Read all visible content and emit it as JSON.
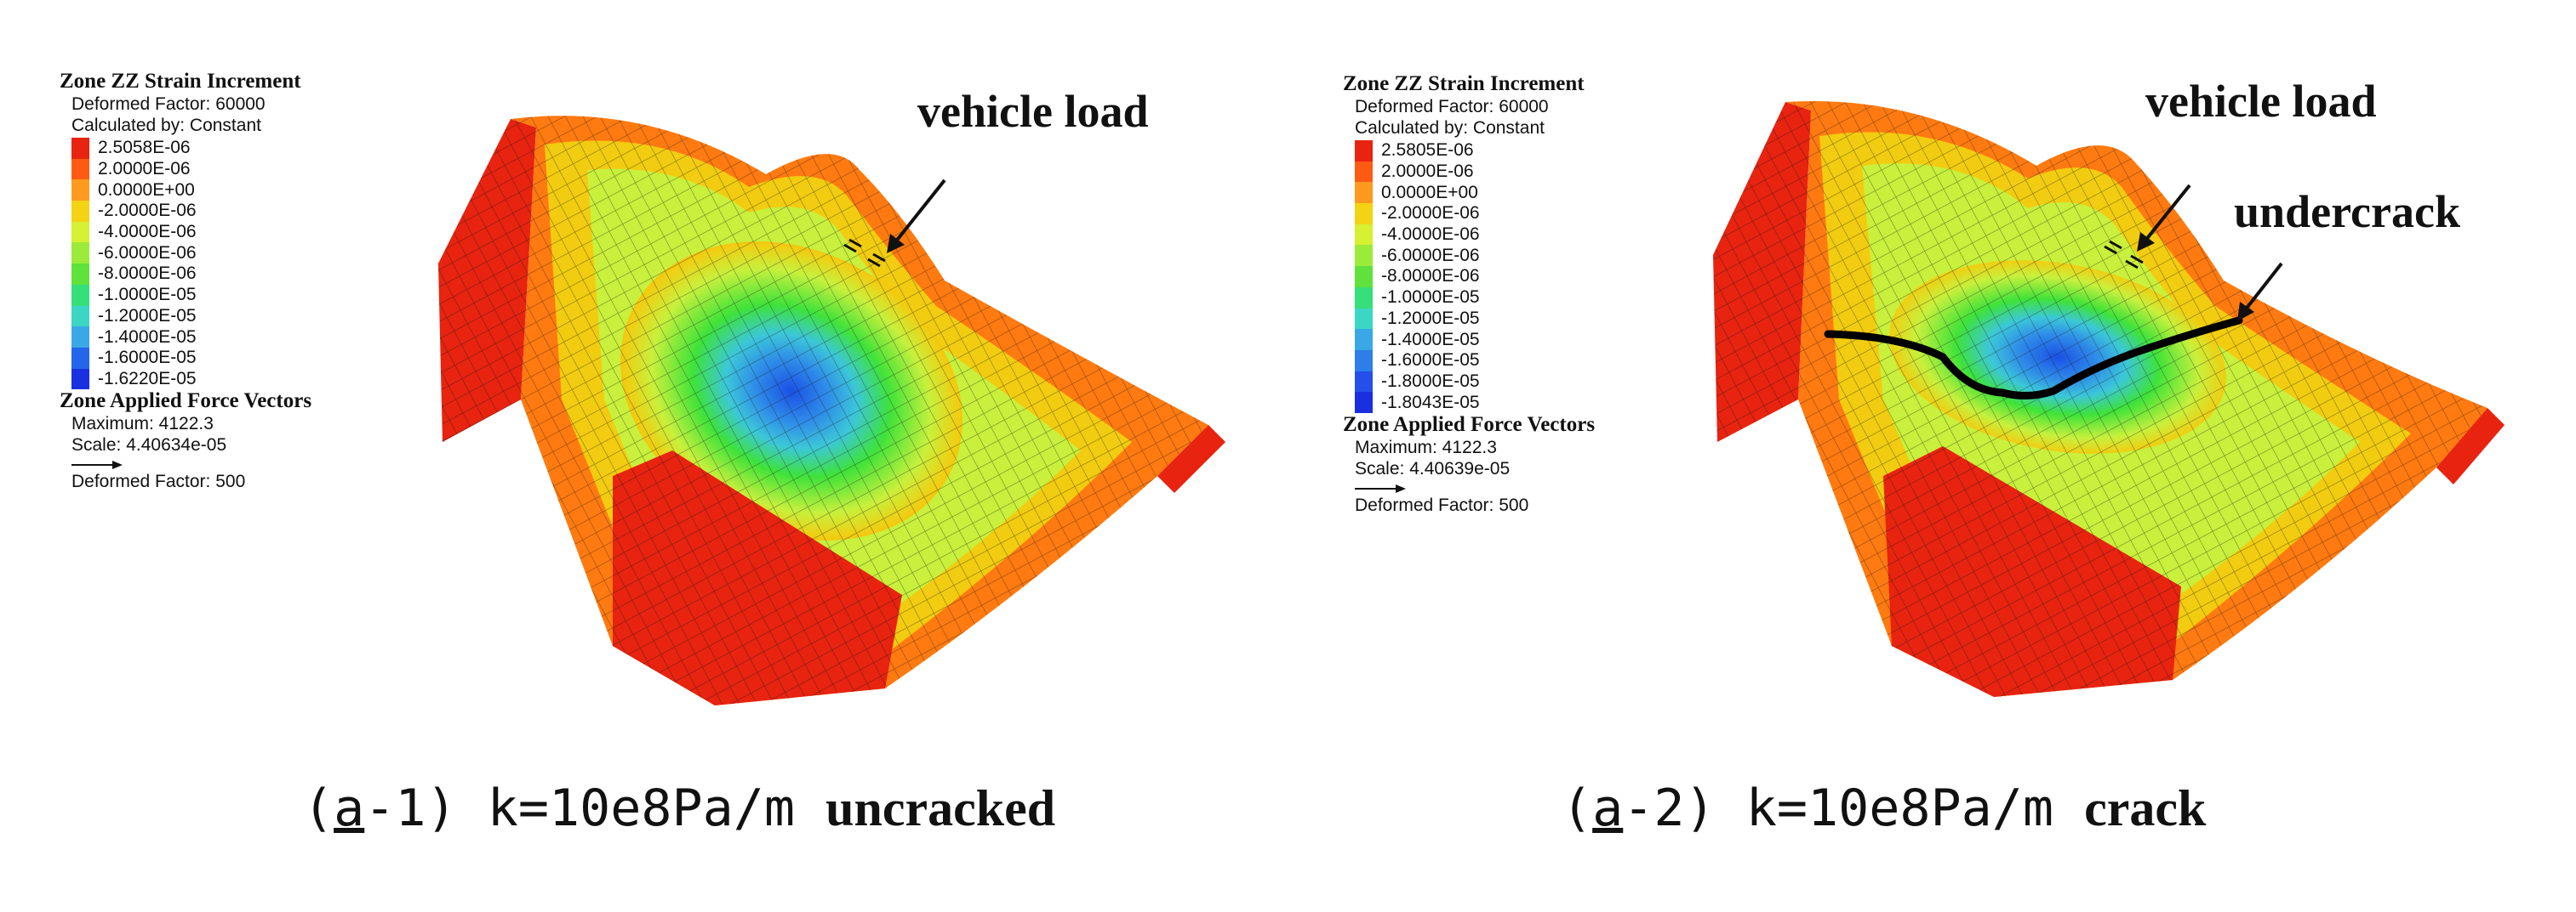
{
  "colors": {
    "red": "#e8230f",
    "orange": "#ff7a10",
    "yellow": "#f2cc10",
    "lime": "#c8f03c",
    "green": "#3fe23a",
    "cyan": "#3cc7d8",
    "blue": "#1b50e6",
    "mesh_line": "#1c1c1c"
  },
  "panels": [
    {
      "legend": {
        "title": "Zone ZZ Strain Increment",
        "deformed_factor": "Deformed Factor: 60000",
        "calculated_by": "Calculated by: Constant",
        "scale": [
          {
            "label": "2.5058E-06",
            "color": "#e8230f"
          },
          {
            "label": "2.0000E-06",
            "color": "#ff5a12"
          },
          {
            "label": "0.0000E+00",
            "color": "#ff9a1e"
          },
          {
            "label": "-2.0000E-06",
            "color": "#f4d214"
          },
          {
            "label": "-4.0000E-06",
            "color": "#d6f032"
          },
          {
            "label": "-6.0000E-06",
            "color": "#9ceb3a"
          },
          {
            "label": "-8.0000E-06",
            "color": "#5fe23c"
          },
          {
            "label": "-1.0000E-05",
            "color": "#35df7a"
          },
          {
            "label": "-1.2000E-05",
            "color": "#3bd6c4"
          },
          {
            "label": "-1.4000E-05",
            "color": "#3aa8e6"
          },
          {
            "label": "-1.6000E-05",
            "color": "#2366ea"
          },
          {
            "label": "-1.6220E-05",
            "color": "#1a2fe0"
          }
        ],
        "force_title": "Zone Applied Force Vectors",
        "maximum": "Maximum: 4122.3",
        "scale_text": "Scale: 4.40634e-05",
        "force_deformed": "Deformed Factor: 500"
      },
      "annotations": [
        "vehicle load"
      ],
      "caption": {
        "prefix": "(",
        "letter": "a",
        "suffix": "-1) k=10e8Pa/m ",
        "word": "uncracked"
      }
    },
    {
      "legend": {
        "title": "Zone ZZ Strain Increment",
        "deformed_factor": "Deformed Factor: 60000",
        "calculated_by": "Calculated by: Constant",
        "scale": [
          {
            "label": "2.5805E-06",
            "color": "#e8230f"
          },
          {
            "label": "2.0000E-06",
            "color": "#ff5a12"
          },
          {
            "label": "0.0000E+00",
            "color": "#ff9a1e"
          },
          {
            "label": "-2.0000E-06",
            "color": "#f4d214"
          },
          {
            "label": "-4.0000E-06",
            "color": "#d6f032"
          },
          {
            "label": "-6.0000E-06",
            "color": "#9ceb3a"
          },
          {
            "label": "-8.0000E-06",
            "color": "#5fe23c"
          },
          {
            "label": "-1.0000E-05",
            "color": "#35df7a"
          },
          {
            "label": "-1.2000E-05",
            "color": "#3bd6c4"
          },
          {
            "label": "-1.4000E-05",
            "color": "#3aa8e6"
          },
          {
            "label": "-1.6000E-05",
            "color": "#2d7ee8"
          },
          {
            "label": "-1.8000E-05",
            "color": "#2350ea"
          },
          {
            "label": "-1.8043E-05",
            "color": "#1a2fe0"
          }
        ],
        "force_title": "Zone Applied Force Vectors",
        "maximum": "Maximum: 4122.3",
        "scale_text": "Scale: 4.40639e-05",
        "force_deformed": "Deformed Factor: 500"
      },
      "annotations": [
        "vehicle load",
        "undercrack"
      ],
      "caption": {
        "prefix": "(",
        "letter": "a",
        "suffix": "-2) k=10e8Pa/m ",
        "word": "crack"
      }
    }
  ]
}
